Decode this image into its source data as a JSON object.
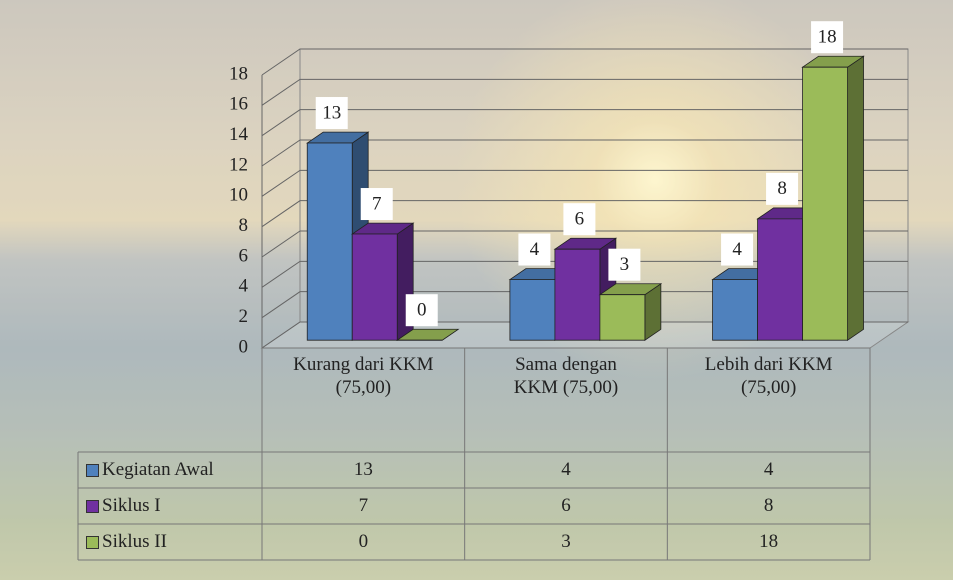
{
  "chart_data": {
    "type": "bar3d",
    "categories": [
      "Kurang dari KKM (75,00)",
      "Sama dengan KKM (75,00)",
      "Lebih dari KKM (75,00)"
    ],
    "series": [
      {
        "name": "Kegiatan Awal",
        "color": "#4f81bd",
        "values": [
          13,
          4,
          4
        ]
      },
      {
        "name": "Siklus I",
        "color": "#7030a0",
        "values": [
          7,
          6,
          8
        ]
      },
      {
        "name": "Siklus II",
        "color": "#9bbb59",
        "values": [
          0,
          3,
          18
        ]
      }
    ],
    "ylim": [
      0,
      18
    ],
    "yticks": [
      0,
      2,
      4,
      6,
      8,
      10,
      12,
      14,
      16,
      18
    ],
    "grid": true,
    "data_table": true
  }
}
